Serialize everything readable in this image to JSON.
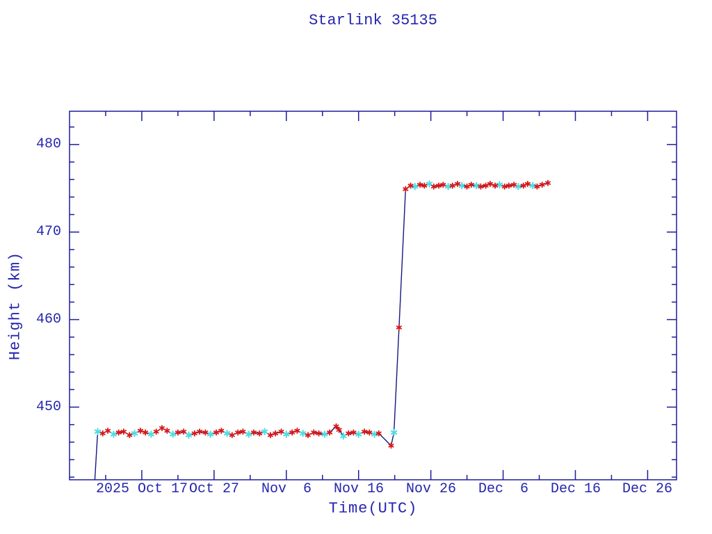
{
  "chart_data": {
    "type": "line",
    "title": "Starlink 35135",
    "xlabel": "Time(UTC)",
    "ylabel": "Height (km)",
    "legend": "none",
    "grid": false,
    "colors": {
      "text": "#2626ae",
      "axis": "#1c1c9c",
      "line": "#161680",
      "red_marker": "#d81616",
      "cyan_marker": "#50dce2"
    },
    "x_axis": {
      "unit": "days_since_2025-10-07",
      "span_days": 84,
      "minor_tick_days": 5,
      "major_ticks": [
        {
          "t": 10,
          "label": "2025 Oct 17"
        },
        {
          "t": 20,
          "label": "Oct 27"
        },
        {
          "t": 30,
          "label": "Nov  6"
        },
        {
          "t": 40,
          "label": "Nov 16"
        },
        {
          "t": 50,
          "label": "Nov 26"
        },
        {
          "t": 60,
          "label": "Dec  6"
        },
        {
          "t": 70,
          "label": "Dec 16"
        },
        {
          "t": 80,
          "label": "Dec 26"
        }
      ]
    },
    "y_axis": {
      "min": 441.7,
      "max": 483.8,
      "minor_tick_km": 2,
      "major_ticks": [
        450,
        460,
        470,
        480
      ]
    },
    "series": [
      {
        "name": "orbit-height",
        "point_format": [
          "days_since_axis_start",
          "height_km",
          "marker(r=red asterisk, c=cyan asterisk, 0=none)"
        ],
        "points": [
          [
            3.5,
            441.7,
            0
          ],
          [
            3.9,
            447.2,
            "c"
          ],
          [
            4.6,
            447.0,
            "r"
          ],
          [
            5.3,
            447.3,
            "r"
          ],
          [
            6.1,
            446.9,
            "c"
          ],
          [
            6.8,
            447.1,
            "r"
          ],
          [
            7.5,
            447.2,
            "r"
          ],
          [
            8.3,
            446.8,
            "r"
          ],
          [
            9.0,
            447.0,
            "c"
          ],
          [
            9.8,
            447.3,
            "r"
          ],
          [
            10.5,
            447.1,
            "r"
          ],
          [
            11.3,
            446.9,
            "c"
          ],
          [
            12.0,
            447.2,
            "r"
          ],
          [
            12.8,
            447.6,
            "r"
          ],
          [
            13.5,
            447.3,
            "r"
          ],
          [
            14.3,
            446.9,
            "c"
          ],
          [
            15.0,
            447.1,
            "r"
          ],
          [
            15.8,
            447.2,
            "r"
          ],
          [
            16.5,
            446.8,
            "c"
          ],
          [
            17.3,
            447.0,
            "r"
          ],
          [
            18.0,
            447.2,
            "r"
          ],
          [
            18.8,
            447.1,
            "r"
          ],
          [
            19.5,
            446.9,
            "c"
          ],
          [
            20.3,
            447.1,
            "r"
          ],
          [
            21.0,
            447.3,
            "r"
          ],
          [
            21.8,
            447.0,
            "c"
          ],
          [
            22.5,
            446.8,
            "r"
          ],
          [
            23.3,
            447.1,
            "r"
          ],
          [
            24.0,
            447.2,
            "r"
          ],
          [
            24.8,
            446.9,
            "c"
          ],
          [
            25.5,
            447.1,
            "r"
          ],
          [
            26.3,
            447.0,
            "r"
          ],
          [
            27.0,
            447.2,
            "c"
          ],
          [
            27.8,
            446.8,
            "r"
          ],
          [
            28.5,
            447.0,
            "r"
          ],
          [
            29.3,
            447.2,
            "r"
          ],
          [
            30.0,
            446.9,
            "c"
          ],
          [
            30.8,
            447.1,
            "r"
          ],
          [
            31.5,
            447.3,
            "r"
          ],
          [
            32.3,
            447.0,
            "c"
          ],
          [
            33.0,
            446.8,
            "r"
          ],
          [
            33.8,
            447.1,
            "r"
          ],
          [
            34.5,
            447.0,
            "r"
          ],
          [
            35.3,
            446.9,
            "c"
          ],
          [
            36.0,
            447.1,
            "r"
          ],
          [
            36.9,
            447.8,
            "r"
          ],
          [
            37.3,
            447.4,
            "r"
          ],
          [
            37.9,
            446.7,
            "c"
          ],
          [
            38.6,
            447.0,
            "r"
          ],
          [
            39.3,
            447.1,
            "r"
          ],
          [
            40.0,
            446.9,
            "c"
          ],
          [
            40.8,
            447.2,
            "r"
          ],
          [
            41.5,
            447.1,
            "r"
          ],
          [
            42.2,
            446.9,
            "c"
          ],
          [
            42.8,
            447.0,
            "r"
          ],
          [
            44.5,
            445.6,
            "r"
          ],
          [
            44.9,
            447.1,
            "c"
          ],
          [
            45.6,
            459.1,
            "r"
          ],
          [
            46.5,
            474.9,
            "r"
          ],
          [
            47.2,
            475.3,
            "r"
          ],
          [
            47.8,
            475.2,
            "c"
          ],
          [
            48.5,
            475.4,
            "r"
          ],
          [
            49.1,
            475.3,
            "r"
          ],
          [
            49.8,
            475.5,
            "c"
          ],
          [
            50.4,
            475.2,
            "r"
          ],
          [
            51.1,
            475.3,
            "r"
          ],
          [
            51.7,
            475.4,
            "r"
          ],
          [
            52.4,
            475.2,
            "c"
          ],
          [
            53.0,
            475.3,
            "r"
          ],
          [
            53.7,
            475.5,
            "r"
          ],
          [
            54.3,
            475.3,
            "c"
          ],
          [
            55.0,
            475.2,
            "r"
          ],
          [
            55.6,
            475.4,
            "r"
          ],
          [
            56.3,
            475.3,
            "c"
          ],
          [
            56.9,
            475.2,
            "r"
          ],
          [
            57.6,
            475.3,
            "r"
          ],
          [
            58.2,
            475.5,
            "r"
          ],
          [
            58.9,
            475.3,
            "r"
          ],
          [
            59.5,
            475.4,
            "c"
          ],
          [
            60.2,
            475.2,
            "r"
          ],
          [
            60.8,
            475.3,
            "r"
          ],
          [
            61.5,
            475.4,
            "r"
          ],
          [
            62.1,
            475.2,
            "c"
          ],
          [
            62.8,
            475.3,
            "r"
          ],
          [
            63.4,
            475.5,
            "r"
          ],
          [
            64.1,
            475.3,
            "c"
          ],
          [
            64.7,
            475.2,
            "r"
          ],
          [
            65.4,
            475.4,
            "r"
          ],
          [
            66.2,
            475.6,
            "r"
          ]
        ]
      }
    ]
  }
}
